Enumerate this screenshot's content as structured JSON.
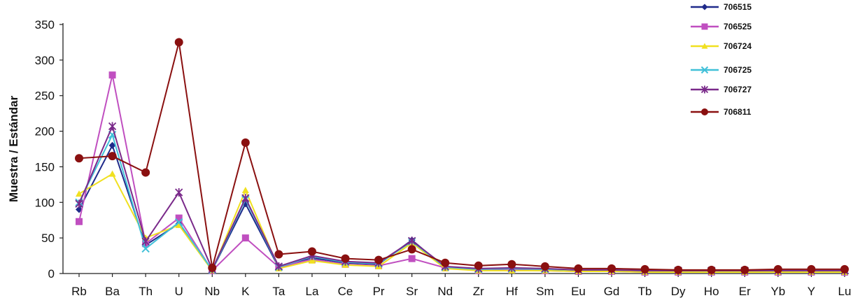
{
  "chart_data": {
    "type": "line",
    "title": "",
    "xlabel": "",
    "ylabel": "Muestra / Estándar",
    "ylim": [
      0,
      350
    ],
    "yticks": [
      0,
      50,
      100,
      150,
      200,
      250,
      300,
      350
    ],
    "grid": false,
    "legend_position": "top-right",
    "categories": [
      "Rb",
      "Ba",
      "Th",
      "U",
      "Nb",
      "K",
      "Ta",
      "La",
      "Ce",
      "Pr",
      "Sr",
      "Nd",
      "Zr",
      "Hf",
      "Sm",
      "Eu",
      "Gd",
      "Tb",
      "Dy",
      "Ho",
      "Er",
      "Yb",
      "Y",
      "Lu"
    ],
    "series": [
      {
        "name": "706515",
        "color": "#1f2a8a",
        "marker": "diamond",
        "values": [
          90,
          180,
          40,
          70,
          5,
          98,
          8,
          22,
          15,
          13,
          47,
          8,
          5,
          6,
          5,
          4,
          4,
          3,
          3,
          3,
          3,
          3,
          3,
          3
        ]
      },
      {
        "name": "706525",
        "color": "#c04fc0",
        "marker": "square",
        "values": [
          73,
          279,
          42,
          78,
          4,
          50,
          9,
          20,
          13,
          11,
          21,
          8,
          4,
          5,
          4,
          3,
          3,
          2,
          2,
          2,
          2,
          2,
          2,
          2
        ]
      },
      {
        "name": "706724",
        "color": "#f0e020",
        "marker": "triangle",
        "values": [
          112,
          140,
          50,
          68,
          4,
          117,
          7,
          18,
          12,
          10,
          43,
          7,
          4,
          4,
          4,
          3,
          3,
          2,
          2,
          2,
          2,
          2,
          2,
          2
        ]
      },
      {
        "name": "706725",
        "color": "#40c0d8",
        "marker": "x",
        "values": [
          100,
          195,
          35,
          72,
          5,
          104,
          9,
          24,
          16,
          14,
          45,
          9,
          6,
          7,
          6,
          5,
          5,
          4,
          4,
          4,
          4,
          4,
          4,
          4
        ]
      },
      {
        "name": "706727",
        "color": "#7a2a8a",
        "marker": "star",
        "values": [
          98,
          207,
          45,
          114,
          6,
          106,
          10,
          25,
          17,
          15,
          46,
          10,
          7,
          8,
          7,
          5,
          5,
          4,
          4,
          4,
          4,
          4,
          4,
          4
        ]
      },
      {
        "name": "706811",
        "color": "#8a1010",
        "marker": "circle",
        "values": [
          162,
          165,
          142,
          325,
          8,
          184,
          27,
          31,
          21,
          19,
          34,
          15,
          11,
          13,
          10,
          7,
          7,
          6,
          5,
          5,
          5,
          6,
          6,
          6
        ]
      }
    ]
  }
}
